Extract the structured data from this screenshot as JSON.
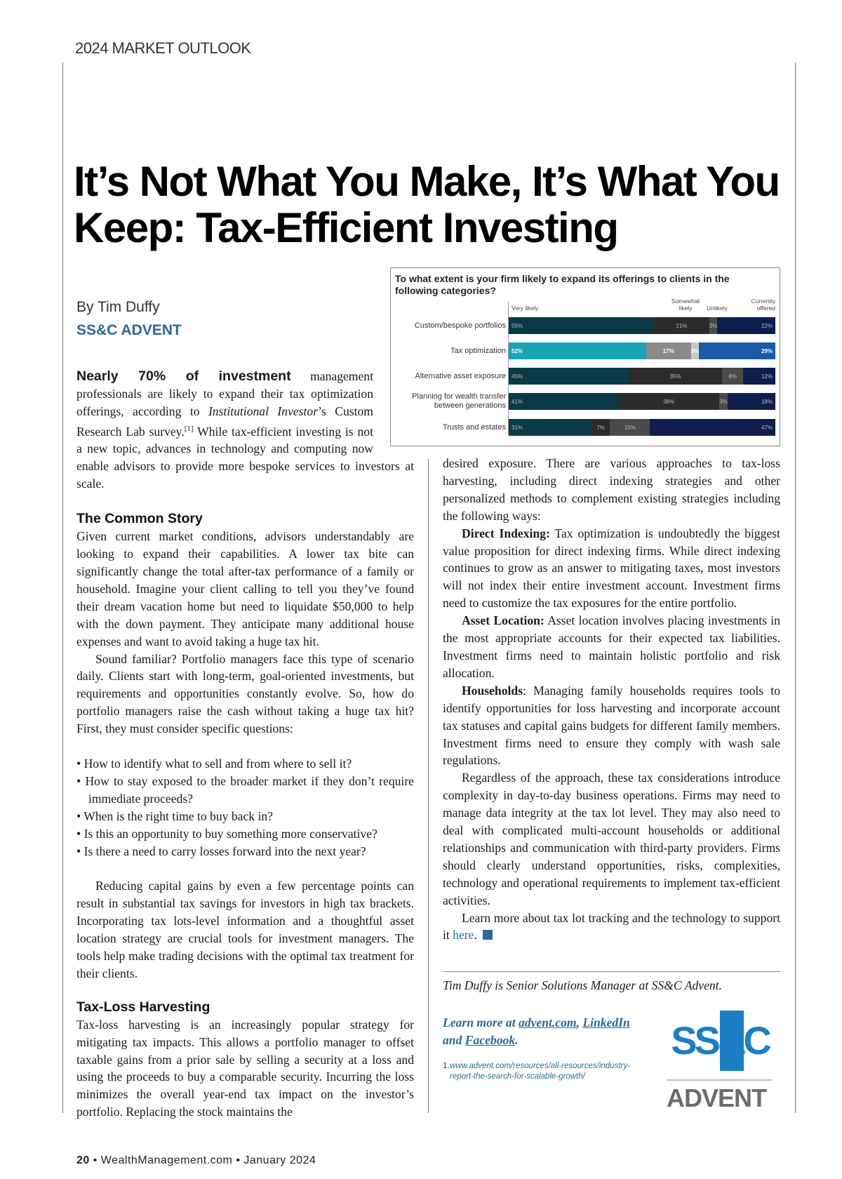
{
  "section": "2024 MARKET OUTLOOK",
  "title": "It’s Not What You Make, It’s What You Keep: Tax-Efficient Investing",
  "byline": "By Tim Duffy",
  "org": "SS&C ADVENT",
  "intro": {
    "lead": "Nearly 70% of investment",
    "text1": " management professionals are likely to expand their tax optimization offerings, according to ",
    "source": "Institutional Investor",
    "text2": "’s Custom Research Lab survey.",
    "ref": "[1]",
    "text3": " While tax-efficient investing is not a new topic, advances in technology and computing now enable advisors to provide more bespoke services to investors at scale."
  },
  "common_story": {
    "heading": "The Common Story",
    "p1": "Given current market conditions, advisors understandably are looking to expand their capabilities. A lower tax bite can significantly change the total after-tax performance of a family or household. Imagine your client calling to tell you they’ve found their dream vacation home but need to liquidate $50,000 to help with the down payment. They anticipate many additional house expenses and want to avoid taking a huge tax hit.",
    "p2": "Sound familiar? Portfolio managers face this type of scenario daily. Clients start with long-term, goal-oriented investments, but requirements and opportunities constantly evolve. So, how do portfolio managers raise the cash without taking a huge tax hit? First, they must consider specific questions:",
    "bullets": [
      "How to identify what to sell and from where to sell it?",
      "How to stay exposed to the broader market if they don’t require immediate proceeds?",
      "When is the right time to buy back in?",
      "Is this an opportunity to buy something more conservative?",
      "Is there a need to carry losses forward into the next year?"
    ],
    "p3": "Reducing capital gains by even a few percentage points can result in substantial tax savings for investors in high tax brackets. Incorporating tax lots-level information and a thoughtful asset location strategy are crucial tools for investment managers. The tools help make trading decisions with the optimal tax treatment for their clients."
  },
  "tlh": {
    "heading": "Tax-Loss Harvesting",
    "p1": "Tax-loss harvesting is an increasingly popular strategy for mitigating tax impacts. This allows a portfolio manager to offset taxable gains from a prior sale by selling a security at a loss and using the proceeds to buy a comparable security. Incurring the loss minimizes the overall year-end tax impact on the investor’s portfolio. Replacing the stock maintains the desired exposure. There are various approaches to tax-loss harvesting, including direct indexing strategies and other personalized methods to complement existing strategies including the following ways:",
    "p1_left": "Tax-loss harvesting is an increasingly popular strategy for mitigating tax impacts. This allows a portfolio manager to offset taxable gains from a prior sale by selling a security at a loss and using the proceeds to buy a comparable security. Incurring the loss minimizes the overall year-end tax impact on the investor’s portfolio. Replacing the stock maintains the",
    "p1_right": "desired exposure. There are various approaches to tax-loss harvesting, including direct indexing strategies and other personalized methods to complement existing strategies including the following ways:",
    "di_label": "Direct Indexing:",
    "di_text": " Tax optimization is undoubtedly the biggest value proposition for direct indexing firms. While direct indexing continues to grow as an answer to mitigating taxes, most investors will not index their entire investment account. Investment firms need to customize the tax exposures for the entire portfolio.",
    "al_label": "Asset Location:",
    "al_text": " Asset location involves placing investments in the most appropriate accounts for their expected tax liabilities. Investment firms need to maintain holistic portfolio and risk allocation.",
    "hh_label": "Households",
    "hh_text": ": Managing family households requires tools to identify opportunities for loss harvesting and incorporate account tax statuses and capital gains budgets for different family members. Investment firms need to ensure they comply with wash sale regulations.",
    "p2": "Regardless of the approach, these tax considerations introduce complexity in day-to-day business operations. Firms may need to manage data integrity at the tax lot level. They may also need to deal with complicated multi-account households or additional relationships and communication with third-party providers. Firms should clearly understand opportunities, risks, complexities, technology and operational requirements to implement tax-efficient activities.",
    "p3": "Learn more about tax lot tracking and the technology to support it ",
    "p3_link": "here",
    "p3_end": "."
  },
  "bio": "Tim Duffy is Senior Solutions Manager at SS&C Advent.",
  "learn": {
    "pre": "Learn more at ",
    "l1": "advent.com",
    "sep": ", ",
    "l2": "LinkedIn",
    "and": "and ",
    "l3": "Facebook",
    "end": "."
  },
  "footnote": {
    "num": "1.",
    "url": "www.advent.com/resources/all-resources/industry-report-the-search-for-scalable-growth/"
  },
  "logo": {
    "top": "SS&C",
    "bottom": "ADVENT",
    "color": "#1b7fc4"
  },
  "footer": {
    "page": "20",
    "site": "WealthManagement.com",
    "date": "January 2024"
  },
  "chart_data": {
    "type": "bar",
    "stacked": true,
    "orientation": "horizontal",
    "title": "To what extent is your firm likely to expand its offerings to clients in the following categories?",
    "categories": [
      "Custom/bespoke portfolios",
      "Tax optimization",
      "Alternative asset exposure",
      "Planning for wealth transfer between generations",
      "Trusts and estates"
    ],
    "series": [
      {
        "name": "Very likely",
        "values": [
          55,
          52,
          45,
          41,
          31
        ],
        "color": "#0a3a47"
      },
      {
        "name": "Somewhat likely",
        "values": [
          21,
          17,
          35,
          38,
          7
        ],
        "color": "#2b2b2b"
      },
      {
        "name": "Unlikely",
        "values": [
          3,
          3,
          8,
          3,
          15
        ],
        "color": "#4a4a4a"
      },
      {
        "name": "Currently offered",
        "values": [
          22,
          29,
          12,
          18,
          47
        ],
        "color": "#0e1f4d"
      }
    ],
    "highlight_category": "Tax optimization",
    "highlight_colors": [
      "#1aa3b6",
      "#8a8a8a",
      "#c8c8c8",
      "#1b5aa6"
    ]
  }
}
